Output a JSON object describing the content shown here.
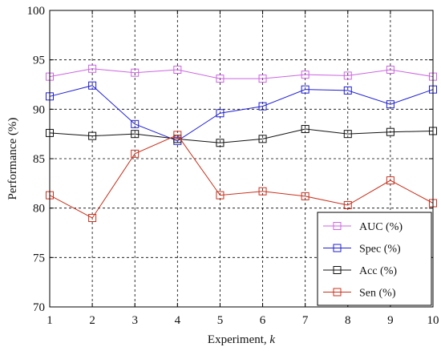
{
  "chart_data": {
    "type": "line",
    "title": "",
    "xlabel": "Experiment, ",
    "xlabel_var": "k",
    "ylabel": "Performance (%)",
    "x": [
      1,
      2,
      3,
      4,
      5,
      6,
      7,
      8,
      9,
      10
    ],
    "xlim": [
      1,
      10
    ],
    "ylim": [
      70,
      100
    ],
    "xticks": [
      1,
      2,
      3,
      4,
      5,
      6,
      7,
      8,
      9,
      10
    ],
    "yticks": [
      70,
      75,
      80,
      85,
      90,
      95,
      100
    ],
    "grid": true,
    "legend_position": "bottom-right",
    "series": [
      {
        "name": "AUC (%)",
        "color": "#cc66e0",
        "marker": "square",
        "values": [
          93.3,
          94.1,
          93.7,
          94.0,
          93.1,
          93.1,
          93.5,
          93.4,
          94.0,
          93.3
        ]
      },
      {
        "name": "Spec (%)",
        "color": "#1f1fd6",
        "marker": "square",
        "values": [
          91.3,
          92.4,
          88.5,
          86.8,
          89.6,
          90.3,
          92.0,
          91.9,
          90.5,
          92.0
        ]
      },
      {
        "name": "Acc (%)",
        "color": "#111111",
        "marker": "square",
        "values": [
          87.6,
          87.3,
          87.5,
          87.0,
          86.6,
          87.0,
          88.0,
          87.5,
          87.7,
          87.8
        ]
      },
      {
        "name": "Sen (%)",
        "color": "#c8321e",
        "marker": "square",
        "values": [
          81.3,
          79.0,
          85.5,
          87.4,
          81.3,
          81.7,
          81.2,
          80.3,
          82.8,
          80.5
        ]
      }
    ]
  }
}
